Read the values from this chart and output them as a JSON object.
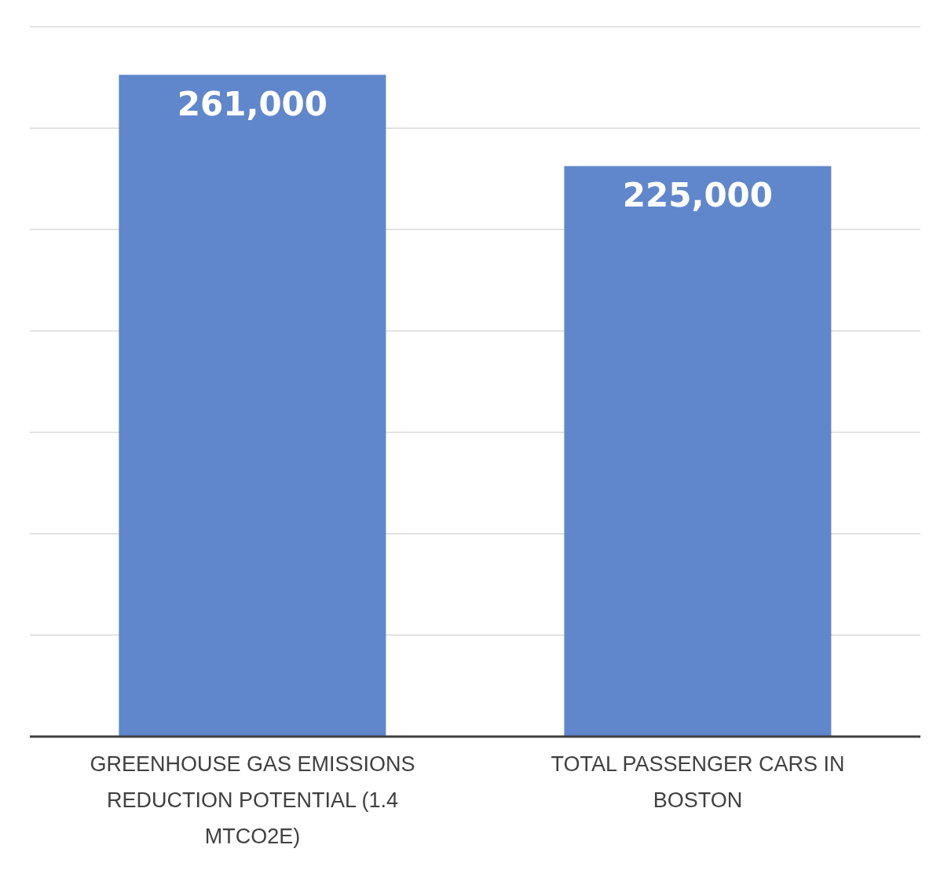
{
  "chart_data": {
    "type": "bar",
    "categories": [
      "GREENHOUSE GAS EMISSIONS REDUCTION POTENTIAL (1.4 MTCO2E)",
      "TOTAL PASSENGER CARS IN BOSTON"
    ],
    "values": [
      261000,
      225000
    ],
    "color": "#6087cc",
    "value_labels": [
      "261,000",
      "225,000"
    ],
    "tick_labels": "x",
    "grid": "y"
  }
}
